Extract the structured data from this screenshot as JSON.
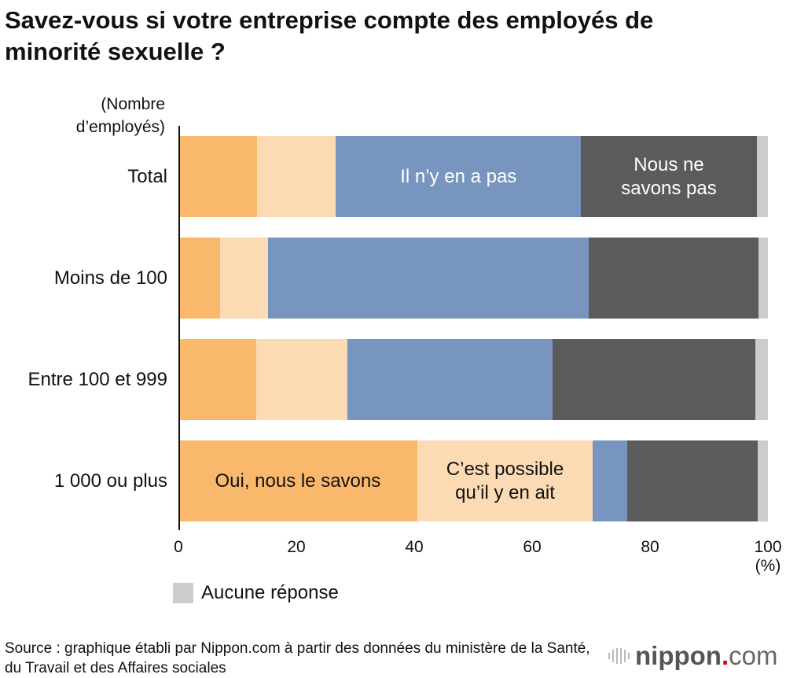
{
  "chart_data": {
    "type": "bar",
    "orientation": "horizontal",
    "stacked": true,
    "title": "Savez-vous si votre entreprise compte des employés de minorité sexuelle ?",
    "ylabel": "(Nombre d’employés)",
    "xlabel": "(%)",
    "xlim": [
      0,
      100
    ],
    "xticks": [
      "0",
      "20",
      "40",
      "60",
      "80",
      "100"
    ],
    "categories": [
      "Total",
      "Moins de 100",
      "Entre 100 et 999",
      "1 000 ou plus"
    ],
    "series": [
      {
        "name": "Oui, nous le savons",
        "color": "#f9b86c",
        "values": [
          13.3,
          7.1,
          13.2,
          40.5
        ]
      },
      {
        "name": "C’est possible qu’il y en ait",
        "color": "#fcdab4",
        "values": [
          13.4,
          8.1,
          15.5,
          29.8
        ]
      },
      {
        "name": "Il n’y en a pas",
        "color": "#7795bf",
        "values": [
          41.6,
          54.4,
          34.8,
          5.8
        ]
      },
      {
        "name": "Nous ne savons pas",
        "color": "#5b5b5b",
        "values": [
          29.8,
          28.8,
          34.4,
          22.2
        ]
      },
      {
        "name": "Aucune réponse",
        "color": "#cccccc",
        "values": [
          1.9,
          1.6,
          2.1,
          1.7
        ]
      }
    ],
    "legend": "bottom-left"
  },
  "segment_labels": {
    "oui": "Oui, nous le savons",
    "possible": "C’est possible qu’il y en ait",
    "pas": "Il n’y en a pas",
    "nsp": "Nous ne savons pas"
  },
  "source": "Source : graphique établi par Nippon.com à partir des données du ministère de la Santé, du Travail et des Affaires sociales",
  "logo": {
    "text": "nippon",
    "suffix": ".com"
  }
}
